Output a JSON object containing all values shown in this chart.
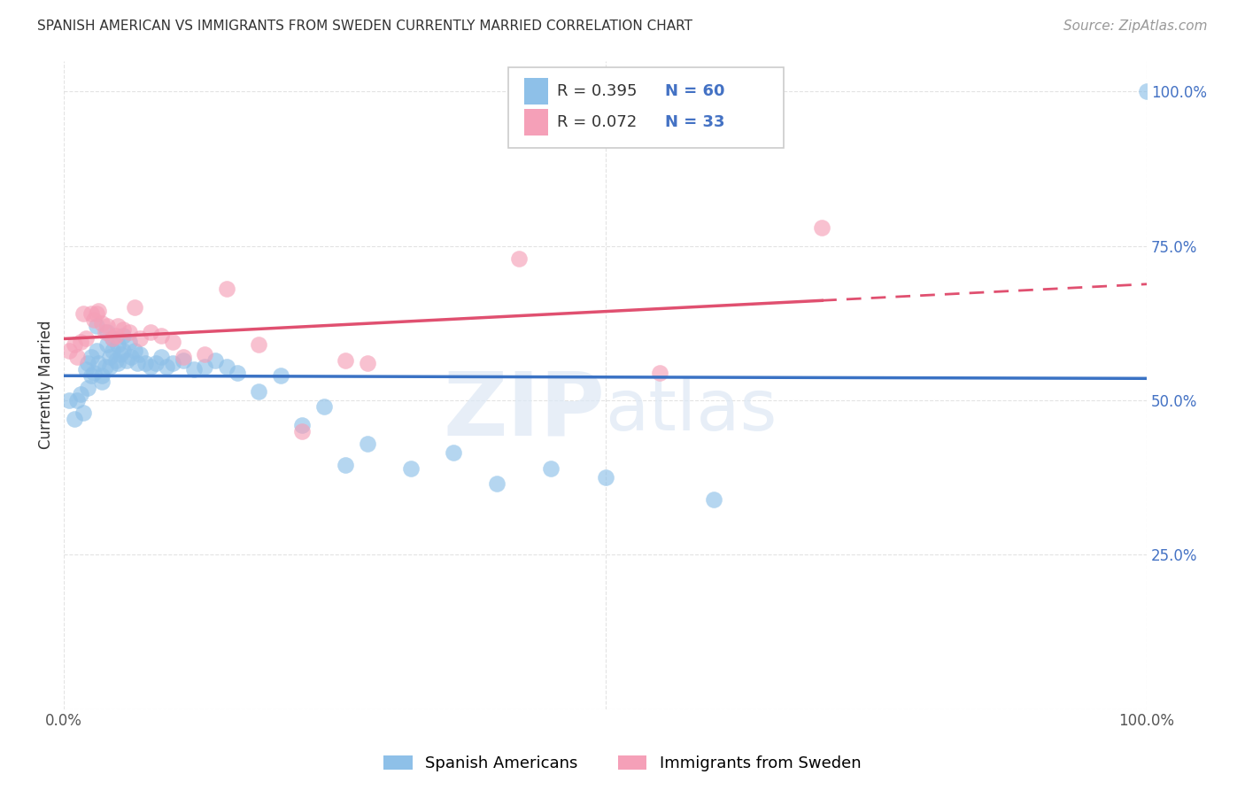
{
  "title": "SPANISH AMERICAN VS IMMIGRANTS FROM SWEDEN CURRENTLY MARRIED CORRELATION CHART",
  "source": "Source: ZipAtlas.com",
  "ylabel": "Currently Married",
  "xlim": [
    0,
    1
  ],
  "ylim": [
    0,
    1.05
  ],
  "legend_labels": [
    "Spanish Americans",
    "Immigrants from Sweden"
  ],
  "series1": {
    "name": "Spanish Americans",
    "R": 0.395,
    "N": 60,
    "color": "#8ec0e8",
    "line_color": "#3a72c4",
    "x": [
      0.005,
      0.01,
      0.012,
      0.015,
      0.018,
      0.02,
      0.022,
      0.022,
      0.025,
      0.025,
      0.028,
      0.03,
      0.03,
      0.032,
      0.035,
      0.035,
      0.038,
      0.04,
      0.04,
      0.042,
      0.042,
      0.045,
      0.045,
      0.048,
      0.05,
      0.05,
      0.052,
      0.055,
      0.055,
      0.058,
      0.06,
      0.062,
      0.065,
      0.068,
      0.07,
      0.075,
      0.08,
      0.085,
      0.09,
      0.095,
      0.1,
      0.11,
      0.12,
      0.13,
      0.14,
      0.15,
      0.16,
      0.18,
      0.2,
      0.22,
      0.24,
      0.26,
      0.28,
      0.32,
      0.36,
      0.4,
      0.45,
      0.5,
      0.6,
      1.0
    ],
    "y": [
      0.5,
      0.47,
      0.5,
      0.51,
      0.48,
      0.55,
      0.56,
      0.52,
      0.57,
      0.54,
      0.545,
      0.62,
      0.58,
      0.56,
      0.54,
      0.53,
      0.555,
      0.61,
      0.59,
      0.57,
      0.555,
      0.6,
      0.58,
      0.565,
      0.59,
      0.56,
      0.575,
      0.605,
      0.58,
      0.565,
      0.595,
      0.57,
      0.58,
      0.56,
      0.575,
      0.56,
      0.555,
      0.56,
      0.57,
      0.555,
      0.56,
      0.565,
      0.55,
      0.555,
      0.565,
      0.555,
      0.545,
      0.515,
      0.54,
      0.46,
      0.49,
      0.395,
      0.43,
      0.39,
      0.415,
      0.365,
      0.39,
      0.375,
      0.34,
      1.0
    ]
  },
  "series2": {
    "name": "Immigrants from Sweden",
    "R": 0.072,
    "N": 33,
    "color": "#f5a0b8",
    "line_color": "#e05070",
    "x": [
      0.005,
      0.01,
      0.012,
      0.015,
      0.018,
      0.02,
      0.025,
      0.028,
      0.03,
      0.032,
      0.035,
      0.038,
      0.04,
      0.045,
      0.048,
      0.05,
      0.055,
      0.06,
      0.065,
      0.07,
      0.08,
      0.09,
      0.1,
      0.11,
      0.13,
      0.15,
      0.18,
      0.22,
      0.26,
      0.28,
      0.42,
      0.55,
      0.7
    ],
    "y": [
      0.58,
      0.59,
      0.57,
      0.595,
      0.64,
      0.6,
      0.64,
      0.63,
      0.64,
      0.645,
      0.625,
      0.61,
      0.62,
      0.6,
      0.605,
      0.62,
      0.615,
      0.61,
      0.65,
      0.6,
      0.61,
      0.605,
      0.595,
      0.57,
      0.575,
      0.68,
      0.59,
      0.45,
      0.565,
      0.56,
      0.73,
      0.545,
      0.78
    ]
  },
  "watermark_zip": "ZIP",
  "watermark_atlas": "atlas",
  "background_color": "#ffffff",
  "grid_color": "#dddddd"
}
